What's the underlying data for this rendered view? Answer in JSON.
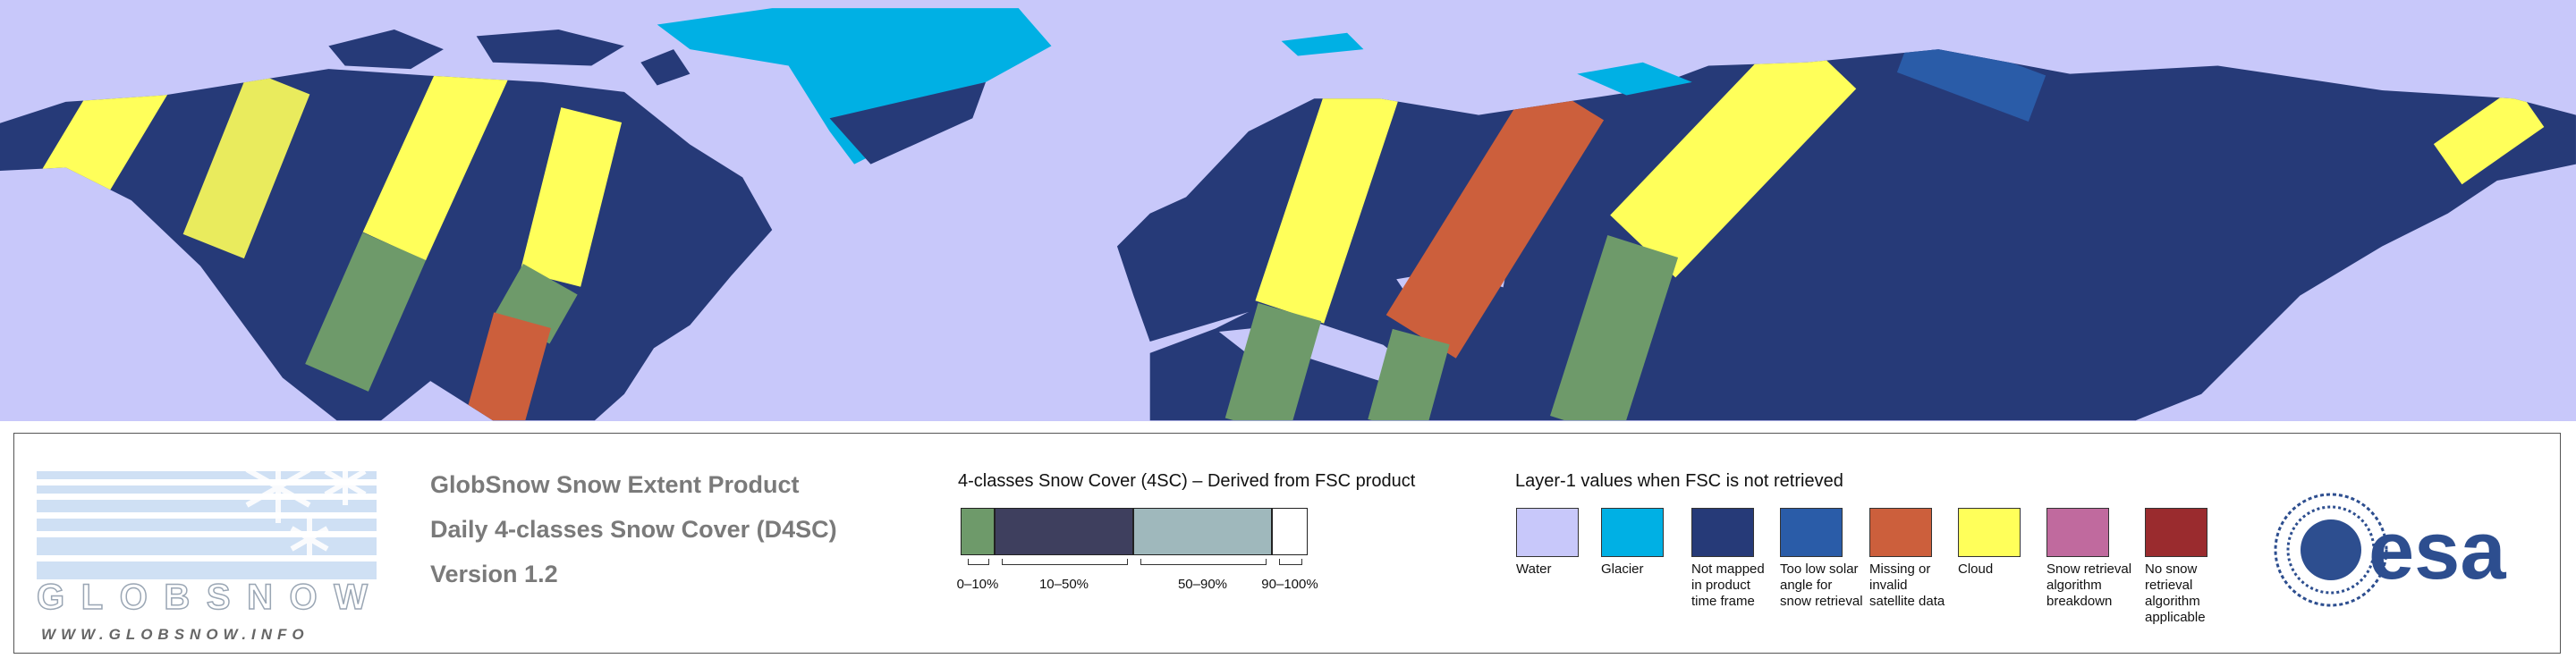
{
  "logo": {
    "name": "GLOBSNOW",
    "url": "WWW.GLOBSNOW.INFO"
  },
  "header": {
    "title": "GlobSnow Snow Extent Product",
    "subtitle": "Daily 4-classes Snow Cover (D4SC)",
    "version": "Version 1.2"
  },
  "scale": {
    "title": "4-classes Snow Cover (4SC) – Derived from FSC product",
    "classes": [
      {
        "label": "0–10%",
        "color": "#6e9a6a"
      },
      {
        "label": "10–50%",
        "color": "#3e3f5e"
      },
      {
        "label": "50–90%",
        "color": "#9fb8bc"
      },
      {
        "label": "90–100%",
        "color": "#ffffff"
      }
    ]
  },
  "layer": {
    "title": "Layer-1 values when FSC is not retrieved",
    "items": [
      {
        "label": "Water",
        "color": "#c8c8fa"
      },
      {
        "label": "Glacier",
        "color": "#00b0e4"
      },
      {
        "label": "Not mapped in product time frame",
        "color": "#263a78"
      },
      {
        "label": "Too low solar angle for snow retrieval",
        "color": "#2a5ca8"
      },
      {
        "label": "Missing or invalid satellite data",
        "color": "#cc5f3c"
      },
      {
        "label": "Cloud",
        "color": "#ffff5a"
      },
      {
        "label": "Snow retrieval algorithm breakdown",
        "color": "#c06a9e"
      },
      {
        "label": "No snow retrieval algorithm applicable",
        "color": "#9a2b2e"
      }
    ]
  },
  "agency": "esa"
}
